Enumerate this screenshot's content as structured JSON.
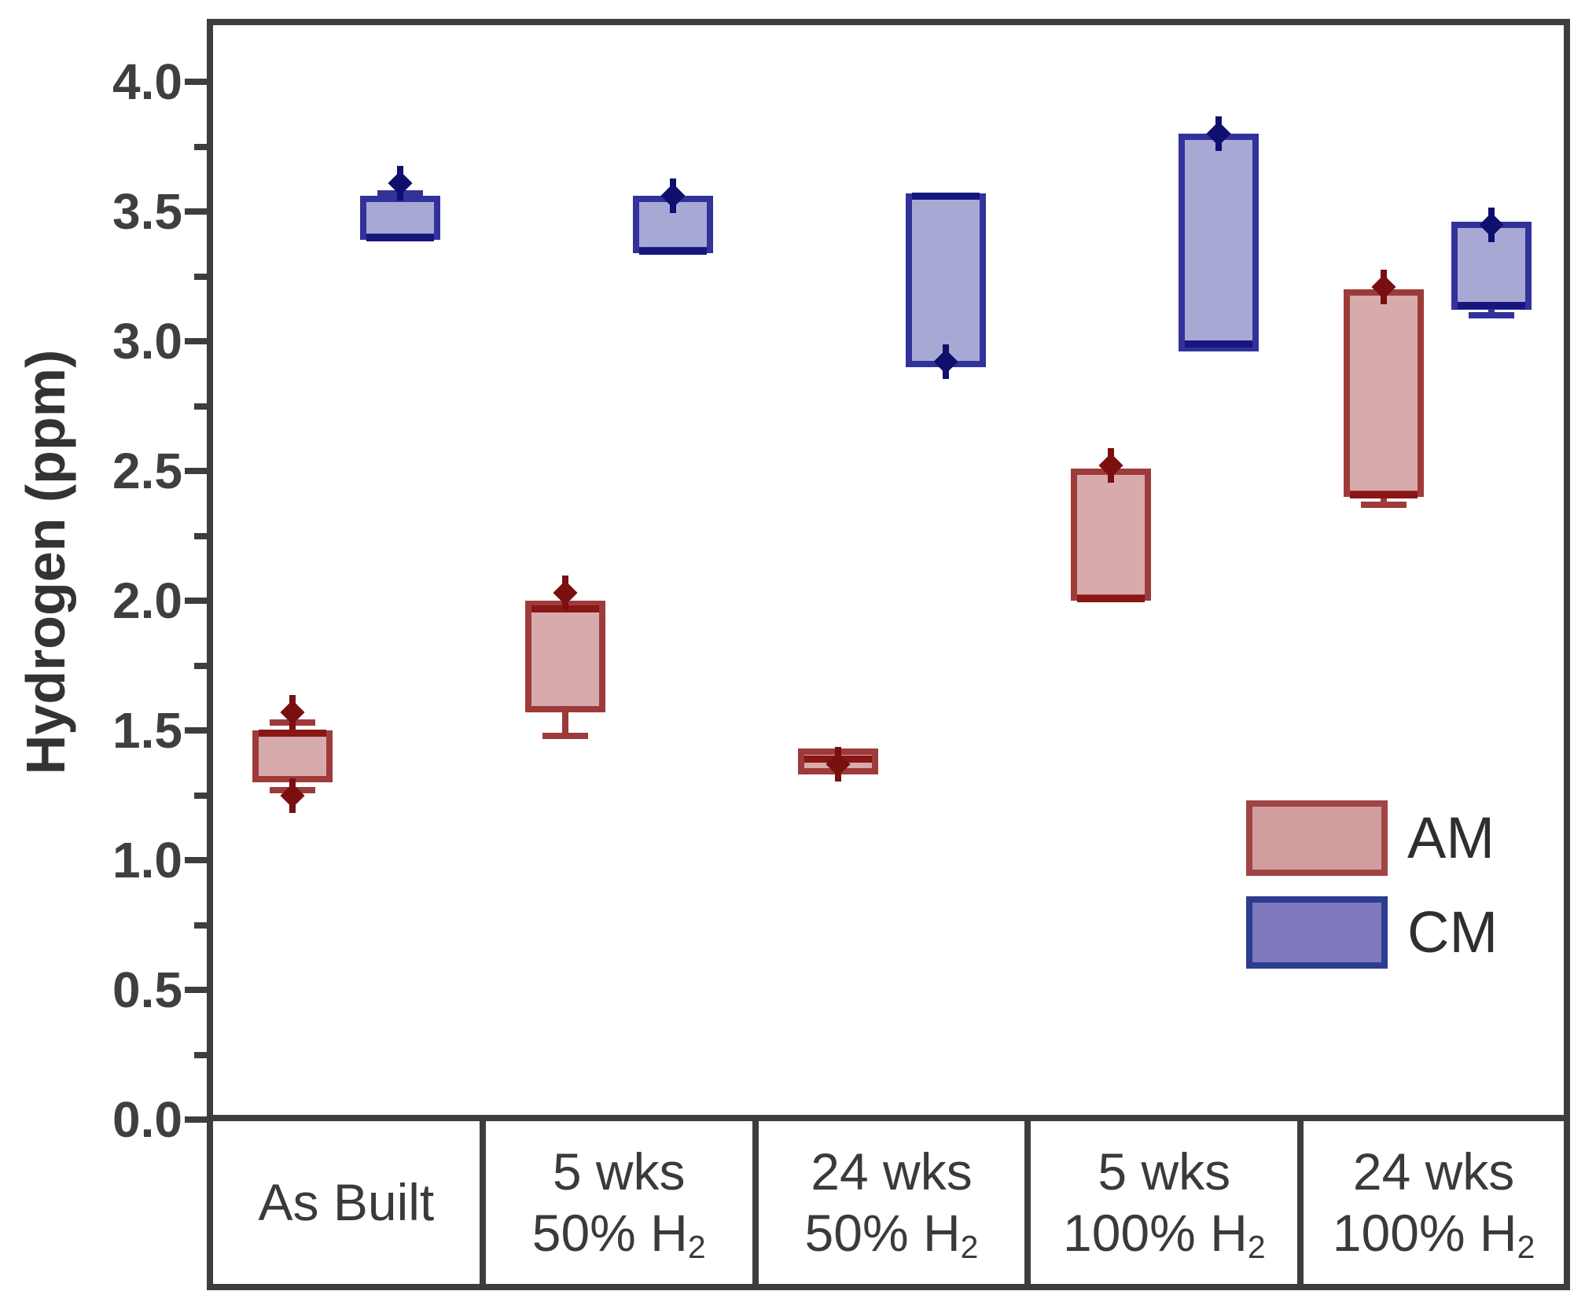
{
  "chart_data": {
    "type": "box",
    "title": "",
    "xlabel": "",
    "ylabel": "Hydrogen (ppm)",
    "ylim": [
      0,
      4.2
    ],
    "ytick_major_step": 0.5,
    "ytick_minor_step": 0.25,
    "ytick_labels": [
      "0.0",
      "0.5",
      "1.0",
      "1.5",
      "2.0",
      "2.5",
      "3.0",
      "3.5",
      "4.0"
    ],
    "grid": "off",
    "legend_position": "lower-right",
    "categories": [
      {
        "lines": [
          "As Built"
        ]
      },
      {
        "lines": [
          "5 wks",
          "50% H2"
        ]
      },
      {
        "lines": [
          "24 wks",
          "50% H2"
        ]
      },
      {
        "lines": [
          "5 wks",
          "100% H2"
        ]
      },
      {
        "lines": [
          "24 wks",
          "100% H2"
        ]
      }
    ],
    "series": [
      {
        "name": "AM",
        "fill": "#d7abab",
        "border": "#9e3a3a",
        "median_color": "#8a1616",
        "marker_color": "#7a0f0f",
        "boxes": [
          {
            "q1": 1.3,
            "q3": 1.5,
            "median": 1.49,
            "whisker_low": 1.27,
            "whisker_high": 1.53,
            "markers": [
              1.57,
              1.25
            ]
          },
          {
            "q1": 1.57,
            "q3": 2.0,
            "median": 1.97,
            "whisker_low": 1.48,
            "markers": [
              2.03
            ]
          },
          {
            "q1": 1.33,
            "q3": 1.43,
            "median": 1.39,
            "markers": [
              1.37
            ]
          },
          {
            "q1": 2.0,
            "q3": 2.51,
            "median": 2.01,
            "markers": [
              2.52
            ]
          },
          {
            "q1": 2.4,
            "q3": 3.2,
            "median": 2.41,
            "whisker_low": 2.37,
            "markers": [
              3.21
            ]
          }
        ]
      },
      {
        "name": "CM",
        "fill": "#a8a8d4",
        "border": "#32329b",
        "median_color": "#16167e",
        "marker_color": "#0f0f6e",
        "boxes": [
          {
            "q1": 3.39,
            "q3": 3.56,
            "median": 3.4,
            "whisker_high": 3.57,
            "markers": [
              3.61
            ]
          },
          {
            "q1": 3.34,
            "q3": 3.56,
            "median": 3.35,
            "markers": [
              3.56
            ]
          },
          {
            "q1": 2.9,
            "q3": 3.57,
            "median": 3.56,
            "markers": [
              2.92
            ]
          },
          {
            "q1": 2.96,
            "q3": 3.8,
            "median": 2.99,
            "markers": [
              3.8
            ]
          },
          {
            "q1": 3.12,
            "q3": 3.46,
            "median": 3.14,
            "whisker_low": 3.1,
            "markers": [
              3.45
            ]
          }
        ]
      }
    ],
    "legend": {
      "entries": [
        {
          "label": "AM",
          "fill": "#cf9d9d",
          "border": "#a04444"
        },
        {
          "label": "CM",
          "fill": "#7d79bc",
          "border": "#2c3c90"
        }
      ]
    }
  }
}
